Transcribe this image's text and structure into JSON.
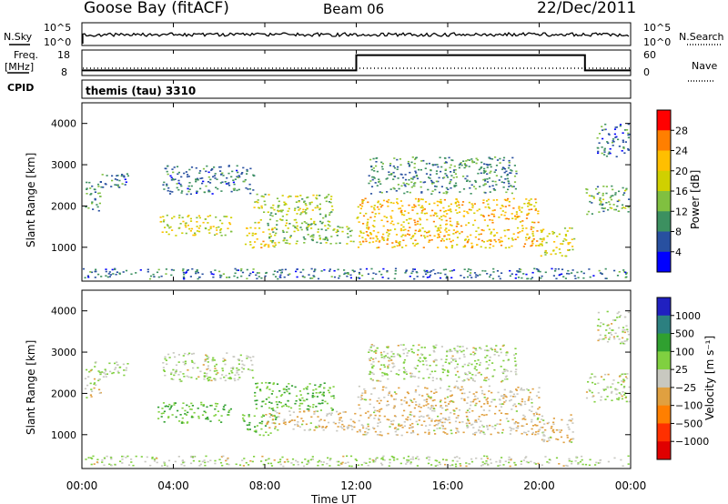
{
  "header": {
    "station": "Goose Bay (fitACF)",
    "beam": "Beam 06",
    "date": "22/Dec/2011"
  },
  "noise_panel": {
    "left_label": "N.Sky",
    "right_label": "N.Search",
    "left_ticks": [
      "10^5",
      "10^0"
    ],
    "right_ticks": [
      "10^5",
      "10^0"
    ]
  },
  "freq_panel": {
    "left_label_1": "Freq.",
    "left_label_2": "[MHz]",
    "right_label": "Nave",
    "left_ticks": [
      "18",
      "8"
    ],
    "right_ticks": [
      "60",
      "0"
    ]
  },
  "cpid_panel": {
    "label": "CPID",
    "text": "themis (tau) 3310"
  },
  "power_panel": {
    "ylabel": "Slant Range [km]",
    "colorbar_label": "Power [dB]",
    "colorbar_ticks": [
      "28",
      "24",
      "20",
      "16",
      "12",
      "8",
      "4"
    ],
    "colors": [
      "#ff0000",
      "#ff7f00",
      "#ffbf00",
      "#d0d000",
      "#80c040",
      "#3c9060",
      "#2850a0",
      "#0000ff"
    ]
  },
  "velocity_panel": {
    "ylabel": "Slant Range [km]",
    "colorbar_label": "Velocity [m s⁻¹]",
    "colorbar_ticks": [
      "1000",
      "500",
      "100",
      "25",
      "−25",
      "−100",
      "−500",
      "−1000"
    ],
    "colors": [
      "#2020c0",
      "#2c8080",
      "#30a030",
      "#80d040",
      "#c8c8c0",
      "#e0a040",
      "#ff7f00",
      "#ff3000",
      "#e00000"
    ]
  },
  "x_axis": {
    "ticks": [
      "00:00",
      "04:00",
      "08:00",
      "12:00",
      "16:00",
      "20:00",
      "00:00"
    ],
    "label": "Time UT"
  },
  "chart_data": {
    "type": "heatmap",
    "title": "Goose Bay (fitACF) Beam 06 22/Dec/2011",
    "xlabel": "Time UT",
    "ylabel": "Slant Range [km]",
    "xlim": [
      "00:00",
      "24:00"
    ],
    "ylim": [
      180,
      4500
    ],
    "yticks": [
      1000,
      2000,
      3000,
      4000
    ],
    "freq_mhz_steps": [
      {
        "from_hour": 0,
        "to_hour": 12,
        "value": 10
      },
      {
        "from_hour": 12,
        "to_hour": 22,
        "value": 16
      },
      {
        "from_hour": 22,
        "to_hour": 24,
        "value": 10
      }
    ],
    "scatter_regions": [
      {
        "t0": 0.1,
        "t1": 0.8,
        "r0": 1900,
        "r1": 2600,
        "power_db": 8,
        "velocity": 25
      },
      {
        "t0": 0.5,
        "t1": 2.0,
        "r0": 2400,
        "r1": 2800,
        "power_db": 6,
        "velocity": 25
      },
      {
        "t0": 3.5,
        "t1": 7.5,
        "r0": 2300,
        "r1": 3000,
        "power_db": 6,
        "velocity": 25
      },
      {
        "t0": 3.3,
        "t1": 6.5,
        "r0": 1300,
        "r1": 1800,
        "power_db": 16,
        "velocity": 100
      },
      {
        "t0": 7.0,
        "t1": 8.5,
        "r0": 1000,
        "r1": 1500,
        "power_db": 18,
        "velocity": 100
      },
      {
        "t0": 7.5,
        "t1": 11.0,
        "r0": 1600,
        "r1": 2300,
        "power_db": 14,
        "velocity": 100
      },
      {
        "t0": 8.0,
        "t1": 12.0,
        "r0": 1100,
        "r1": 1600,
        "power_db": 12,
        "velocity": -25
      },
      {
        "t0": 12.0,
        "t1": 20.0,
        "r0": 1000,
        "r1": 2200,
        "power_db": 20,
        "velocity": -25
      },
      {
        "t0": 12.5,
        "t1": 19.0,
        "r0": 2300,
        "r1": 3200,
        "power_db": 8,
        "velocity": 25
      },
      {
        "t0": 20.0,
        "t1": 21.5,
        "r0": 800,
        "r1": 1500,
        "power_db": 16,
        "velocity": -25
      },
      {
        "t0": 22.0,
        "t1": 23.9,
        "r0": 1800,
        "r1": 2500,
        "power_db": 10,
        "velocity": 25
      },
      {
        "t0": 22.5,
        "t1": 23.9,
        "r0": 3200,
        "r1": 4000,
        "power_db": 6,
        "velocity": 25
      },
      {
        "t0": 0.0,
        "t1": 24.0,
        "r0": 250,
        "r1": 500,
        "power_db": 6,
        "velocity": 25
      }
    ]
  }
}
